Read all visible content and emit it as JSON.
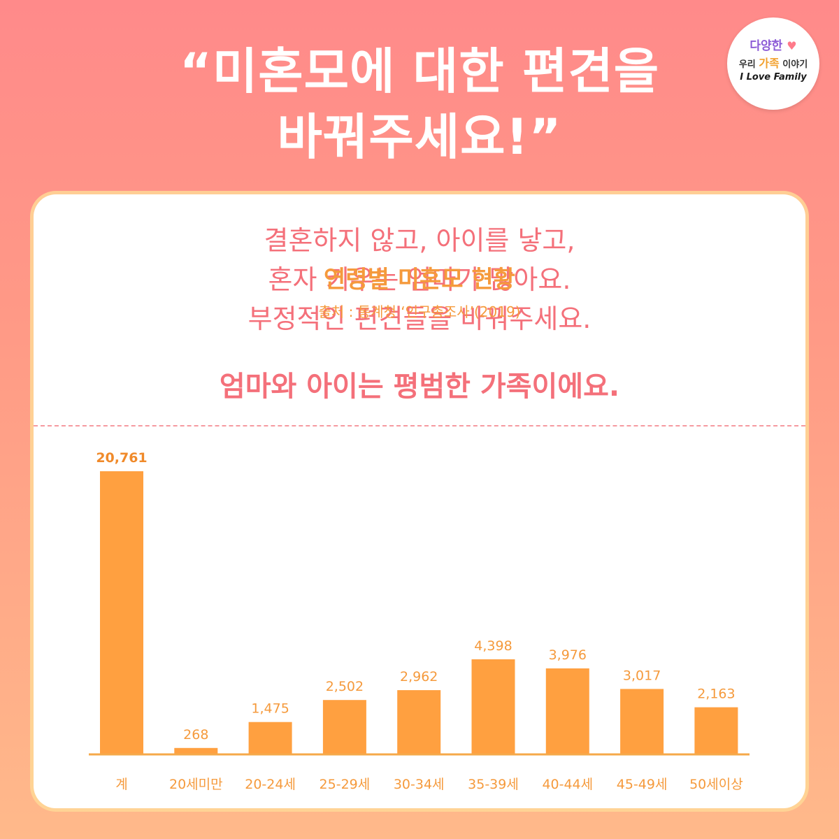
{
  "headline": {
    "line1": "“미혼모에 대한 편견을",
    "line2": "바꿔주세요!”"
  },
  "logo": {
    "line1": "다양한",
    "line2_prefix": "우리 ",
    "line2_accent": "가족",
    "line2_suffix": " 이야기",
    "line3": "I Love Family",
    "heart": "♥"
  },
  "card": {
    "message": [
      "결혼하지 않고, 아이를 낳고,",
      "혼자 키우는 엄마가 많아요.",
      "부정적인 편견들을 바꿔주세요."
    ],
    "emphasis": "엄마와 아이는 평범한 가족이에요."
  },
  "colors": {
    "bar": "#ffa040",
    "axis": "#f5a94a",
    "text": "#f59a3c",
    "pink": "#f4707a"
  },
  "chart_data": {
    "type": "bar",
    "title": "연령별 미혼모 현황",
    "subtitle": "출처 : 통계청 ‘인구총조사’(2019)",
    "categories": [
      "계",
      "20세미만",
      "20-24세",
      "25-29세",
      "30-34세",
      "35-39세",
      "40-44세",
      "45-49세",
      "50세이상"
    ],
    "values": [
      20761,
      268,
      1475,
      2502,
      2962,
      4398,
      3976,
      3017,
      2163
    ],
    "value_labels": [
      "20,761",
      "268",
      "1,475",
      "2,502",
      "2,962",
      "4,398",
      "3,976",
      "3,017",
      "2,163"
    ],
    "xlabel": "",
    "ylabel": "",
    "grid": false,
    "legend": "none",
    "note": "The total bar (계) is drawn on a compressed scale; the age-group bars share a separate scale."
  }
}
